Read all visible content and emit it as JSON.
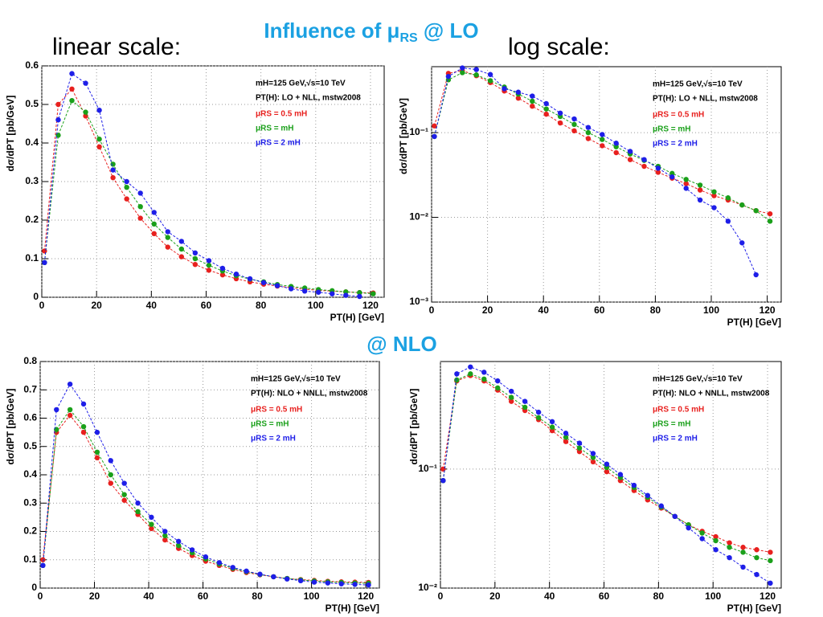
{
  "slide": {
    "title": [
      "Influence of μ",
      "RS",
      " @ LO"
    ],
    "linear_label": "linear scale:",
    "log_label": "log scale:",
    "nlo_label": "@ NLO"
  },
  "chart_data": [
    {
      "type": "line",
      "log_y": false,
      "grid": true,
      "xlabel": "PT(H) [GeV]",
      "ylabel": "dσ/dPT [pb/GeV]",
      "annotations": [
        "mH=125 GeV,√s=10 TeV",
        "PT(H): LO + NLL, mstw2008"
      ],
      "x": [
        1,
        6,
        11,
        16,
        21,
        26,
        31,
        36,
        41,
        46,
        51,
        56,
        61,
        66,
        71,
        76,
        81,
        86,
        91,
        96,
        101,
        106,
        111,
        116,
        121
      ],
      "xlim": [
        0,
        125
      ],
      "xticks": [
        0,
        20,
        40,
        60,
        80,
        100,
        120
      ],
      "ylim": [
        0,
        0.6
      ],
      "yticks": [
        0,
        0.1,
        0.2,
        0.3,
        0.4,
        0.5,
        0.6
      ],
      "series": [
        {
          "name": "μRS = 0.5 mH",
          "color": "#e8201e",
          "values": [
            0.12,
            0.5,
            0.54,
            0.47,
            0.39,
            0.31,
            0.255,
            0.205,
            0.165,
            0.13,
            0.105,
            0.085,
            0.07,
            0.058,
            0.048,
            0.04,
            0.034,
            0.029,
            0.025,
            0.021,
            0.018,
            0.016,
            0.014,
            0.012,
            0.011
          ]
        },
        {
          "name": "μRS = mH",
          "color": "#1aa01a",
          "values": [
            0.09,
            0.42,
            0.51,
            0.48,
            0.41,
            0.345,
            0.285,
            0.235,
            0.19,
            0.155,
            0.125,
            0.1,
            0.083,
            0.068,
            0.056,
            0.047,
            0.04,
            0.033,
            0.028,
            0.024,
            0.02,
            0.017,
            0.014,
            0.012,
            0.009
          ]
        },
        {
          "name": "μRS = 2 mH",
          "color": "#1e1ee8",
          "values": [
            0.09,
            0.46,
            0.58,
            0.555,
            0.485,
            0.33,
            0.3,
            0.27,
            0.22,
            0.17,
            0.145,
            0.115,
            0.095,
            0.075,
            0.06,
            0.048,
            0.038,
            0.03,
            0.022,
            0.016,
            0.013,
            0.009,
            0.005,
            0.0021,
            null
          ]
        }
      ]
    },
    {
      "type": "line",
      "log_y": true,
      "grid": true,
      "xlabel": "PT(H) [GeV]",
      "ylabel": "dσ/dPT [pb/GeV]",
      "annotations": [
        "mH=125 GeV,√s=10 TeV",
        "PT(H): LO + NLL, mstw2008"
      ],
      "x": [
        1,
        6,
        11,
        16,
        21,
        26,
        31,
        36,
        41,
        46,
        51,
        56,
        61,
        66,
        71,
        76,
        81,
        86,
        91,
        96,
        101,
        106,
        111,
        116,
        121
      ],
      "xlim": [
        0,
        125
      ],
      "xticks": [
        0,
        20,
        40,
        60,
        80,
        100,
        120
      ],
      "ylim": [
        0.001,
        0.6
      ],
      "yticks": [
        {
          "value": 0.001,
          "label": "10⁻³"
        },
        {
          "value": 0.01,
          "label": "10⁻²"
        },
        {
          "value": 0.1,
          "label": "10⁻¹"
        }
      ],
      "series": [
        {
          "name": "μRS = 0.5 mH",
          "color": "#e8201e",
          "values": [
            0.12,
            0.5,
            0.54,
            0.47,
            0.39,
            0.31,
            0.255,
            0.205,
            0.165,
            0.13,
            0.105,
            0.085,
            0.07,
            0.058,
            0.048,
            0.04,
            0.034,
            0.029,
            0.025,
            0.021,
            0.018,
            0.016,
            0.014,
            0.012,
            0.011
          ]
        },
        {
          "name": "μRS = mH",
          "color": "#1aa01a",
          "values": [
            0.09,
            0.42,
            0.51,
            0.48,
            0.41,
            0.345,
            0.285,
            0.235,
            0.19,
            0.155,
            0.125,
            0.1,
            0.083,
            0.068,
            0.056,
            0.047,
            0.04,
            0.033,
            0.028,
            0.024,
            0.02,
            0.017,
            0.014,
            0.012,
            0.009
          ]
        },
        {
          "name": "μRS = 2 mH",
          "color": "#1e1ee8",
          "values": [
            0.09,
            0.46,
            0.58,
            0.555,
            0.485,
            0.33,
            0.3,
            0.27,
            0.22,
            0.17,
            0.145,
            0.115,
            0.095,
            0.075,
            0.06,
            0.048,
            0.038,
            0.03,
            0.022,
            0.016,
            0.013,
            0.009,
            0.005,
            0.0021,
            null
          ]
        }
      ]
    },
    {
      "type": "line",
      "log_y": false,
      "grid": true,
      "xlabel": "PT(H) [GeV]",
      "ylabel": "dσ/dPT [pb/GeV]",
      "annotations": [
        "mH=125 GeV,√s=10 TeV",
        "PT(H): NLO + NNLL, mstw2008"
      ],
      "x": [
        1,
        6,
        11,
        16,
        21,
        26,
        31,
        36,
        41,
        46,
        51,
        56,
        61,
        66,
        71,
        76,
        81,
        86,
        91,
        96,
        101,
        106,
        111,
        116,
        121
      ],
      "xlim": [
        0,
        125
      ],
      "xticks": [
        0,
        20,
        40,
        60,
        80,
        100,
        120
      ],
      "ylim": [
        0,
        0.8
      ],
      "yticks": [
        0,
        0.1,
        0.2,
        0.3,
        0.4,
        0.5,
        0.6,
        0.7,
        0.8
      ],
      "series": [
        {
          "name": "μRS = 0.5 mH",
          "color": "#e8201e",
          "values": [
            0.1,
            0.55,
            0.61,
            0.55,
            0.46,
            0.37,
            0.31,
            0.26,
            0.21,
            0.17,
            0.14,
            0.115,
            0.095,
            0.08,
            0.066,
            0.055,
            0.047,
            0.04,
            0.034,
            0.03,
            0.027,
            0.024,
            0.022,
            0.021,
            0.02
          ]
        },
        {
          "name": "μRS = mH",
          "color": "#1aa01a",
          "values": [
            0.08,
            0.56,
            0.63,
            0.57,
            0.48,
            0.4,
            0.33,
            0.27,
            0.225,
            0.185,
            0.15,
            0.125,
            0.103,
            0.085,
            0.07,
            0.058,
            0.048,
            0.04,
            0.034,
            0.029,
            0.025,
            0.022,
            0.02,
            0.018,
            0.017
          ]
        },
        {
          "name": "μRS = 2 mH",
          "color": "#1e1ee8",
          "values": [
            0.08,
            0.63,
            0.72,
            0.65,
            0.55,
            0.45,
            0.37,
            0.3,
            0.25,
            0.2,
            0.165,
            0.135,
            0.11,
            0.09,
            0.073,
            0.06,
            0.049,
            0.04,
            0.032,
            0.026,
            0.021,
            0.018,
            0.015,
            0.013,
            0.011
          ]
        }
      ]
    },
    {
      "type": "line",
      "log_y": true,
      "grid": true,
      "xlabel": "PT(H) [GeV]",
      "ylabel": "dσ/dPT [pb/GeV]",
      "annotations": [
        "mH=125 GeV,√s=10 TeV",
        "PT(H): NLO + NNLL, mstw2008"
      ],
      "x": [
        1,
        6,
        11,
        16,
        21,
        26,
        31,
        36,
        41,
        46,
        51,
        56,
        61,
        66,
        71,
        76,
        81,
        86,
        91,
        96,
        101,
        106,
        111,
        116,
        121
      ],
      "xlim": [
        0,
        125
      ],
      "xticks": [
        0,
        20,
        40,
        60,
        80,
        100,
        120
      ],
      "ylim": [
        0.01,
        0.8
      ],
      "yticks": [
        {
          "value": 0.01,
          "label": "10⁻²"
        },
        {
          "value": 0.1,
          "label": "10⁻¹"
        }
      ],
      "series": [
        {
          "name": "μRS = 0.5 mH",
          "color": "#e8201e",
          "values": [
            0.1,
            0.55,
            0.61,
            0.55,
            0.46,
            0.37,
            0.31,
            0.26,
            0.21,
            0.17,
            0.14,
            0.115,
            0.095,
            0.08,
            0.066,
            0.055,
            0.047,
            0.04,
            0.034,
            0.03,
            0.027,
            0.024,
            0.022,
            0.021,
            0.02
          ]
        },
        {
          "name": "μRS = mH",
          "color": "#1aa01a",
          "values": [
            0.08,
            0.56,
            0.63,
            0.57,
            0.48,
            0.4,
            0.33,
            0.27,
            0.225,
            0.185,
            0.15,
            0.125,
            0.103,
            0.085,
            0.07,
            0.058,
            0.048,
            0.04,
            0.034,
            0.029,
            0.025,
            0.022,
            0.02,
            0.018,
            0.017
          ]
        },
        {
          "name": "μRS = 2 mH",
          "color": "#1e1ee8",
          "values": [
            0.08,
            0.63,
            0.72,
            0.65,
            0.55,
            0.45,
            0.37,
            0.3,
            0.25,
            0.2,
            0.165,
            0.135,
            0.11,
            0.09,
            0.073,
            0.06,
            0.049,
            0.04,
            0.032,
            0.026,
            0.021,
            0.018,
            0.015,
            0.013,
            0.011
          ]
        }
      ]
    }
  ]
}
